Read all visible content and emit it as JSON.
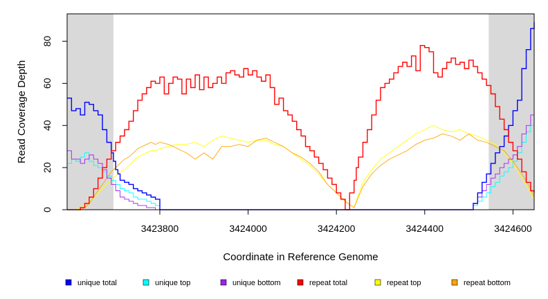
{
  "chart_data": {
    "type": "line",
    "title": "",
    "xlabel": "Coordinate in Reference Genome",
    "ylabel": "Read Coverage Depth",
    "xlim": [
      3423590,
      3424648
    ],
    "ylim": [
      0,
      93
    ],
    "x_ticks": [
      3423800,
      3424000,
      3424200,
      3424400,
      3424600
    ],
    "x_tick_labels": [
      "3423800",
      "3424000",
      "3424200",
      "3424400",
      "3424600"
    ],
    "y_ticks": [
      0,
      20,
      40,
      60,
      80
    ],
    "y_tick_labels": [
      "0",
      "20",
      "40",
      "60",
      "80"
    ],
    "shaded_regions": [
      {
        "x0": 3423590,
        "x1": 3423695,
        "color": "#d9d9d9"
      },
      {
        "x0": 3424545,
        "x1": 3424648,
        "color": "#d9d9d9"
      }
    ],
    "grid": false,
    "legend_position": "bottom",
    "series": [
      {
        "name": "unique total",
        "color": "#0000ff",
        "step": true,
        "x": [
          3423590,
          3423600,
          3423610,
          3423620,
          3423630,
          3423640,
          3423650,
          3423660,
          3423670,
          3423680,
          3423690,
          3423695,
          3423700,
          3423705,
          3423710,
          3423720,
          3423730,
          3423740,
          3423750,
          3423760,
          3423770,
          3423780,
          3423790,
          3423800,
          3423810,
          3424500,
          3424510,
          3424520,
          3424530,
          3424540,
          3424550,
          3424560,
          3424570,
          3424580,
          3424590,
          3424600,
          3424610,
          3424620,
          3424630,
          3424640,
          3424648
        ],
        "y": [
          53,
          47,
          48,
          45,
          51,
          50,
          47,
          45,
          38,
          32,
          27,
          23,
          19,
          17,
          14,
          13,
          12,
          10,
          9,
          8,
          7,
          6,
          5,
          0,
          0,
          0,
          3,
          8,
          13,
          17,
          22,
          27,
          30,
          35,
          40,
          47,
          52,
          67,
          76,
          86,
          89
        ]
      },
      {
        "name": "unique top",
        "color": "#00ffff",
        "step": true,
        "x": [
          3423590,
          3423600,
          3423610,
          3423620,
          3423630,
          3423640,
          3423650,
          3423660,
          3423670,
          3423680,
          3423690,
          3423700,
          3423710,
          3423720,
          3423730,
          3423740,
          3423750,
          3423760,
          3423770,
          3423780,
          3423790,
          3423800,
          3423810,
          3424500,
          3424510,
          3424520,
          3424530,
          3424540,
          3424550,
          3424560,
          3424570,
          3424580,
          3424590,
          3424600,
          3424610,
          3424620,
          3424630,
          3424640,
          3424648
        ],
        "y": [
          22,
          24,
          23,
          25,
          27,
          23,
          21,
          20,
          18,
          16,
          14,
          12,
          10,
          9,
          8,
          6,
          5,
          5,
          4,
          3,
          2,
          0,
          0,
          0,
          2,
          4,
          6,
          8,
          11,
          13,
          16,
          18,
          20,
          23,
          27,
          32,
          37,
          40,
          44
        ]
      },
      {
        "name": "unique bottom",
        "color": "#a020f0",
        "step": true,
        "x": [
          3423590,
          3423600,
          3423610,
          3423620,
          3423630,
          3423640,
          3423650,
          3423660,
          3423670,
          3423680,
          3423690,
          3423700,
          3423710,
          3423720,
          3423730,
          3423740,
          3423750,
          3423760,
          3423770,
          3423780,
          3423790,
          3423800,
          3424500,
          3424510,
          3424520,
          3424530,
          3424540,
          3424550,
          3424560,
          3424570,
          3424580,
          3424590,
          3424600,
          3424610,
          3424620,
          3424630,
          3424640,
          3424648
        ],
        "y": [
          28,
          24,
          24,
          22,
          24,
          26,
          24,
          22,
          19,
          15,
          12,
          9,
          6,
          5,
          4,
          3,
          2,
          2,
          1,
          1,
          0,
          0,
          0,
          3,
          6,
          9,
          12,
          15,
          17,
          20,
          22,
          24,
          26,
          30,
          36,
          40,
          45,
          47
        ]
      },
      {
        "name": "repeat total",
        "color": "#ff0000",
        "step": true,
        "x": [
          3423590,
          3423610,
          3423620,
          3423630,
          3423640,
          3423650,
          3423660,
          3423670,
          3423680,
          3423690,
          3423700,
          3423710,
          3423720,
          3423730,
          3423740,
          3423750,
          3423760,
          3423770,
          3423780,
          3423790,
          3423800,
          3423810,
          3423820,
          3423830,
          3423840,
          3423850,
          3423860,
          3423870,
          3423880,
          3423890,
          3423900,
          3423910,
          3423920,
          3423930,
          3423940,
          3423950,
          3423960,
          3423970,
          3423980,
          3423990,
          3424000,
          3424010,
          3424020,
          3424030,
          3424040,
          3424050,
          3424060,
          3424070,
          3424080,
          3424090,
          3424100,
          3424110,
          3424120,
          3424130,
          3424140,
          3424150,
          3424160,
          3424170,
          3424180,
          3424190,
          3424200,
          3424210,
          3424220,
          3424230,
          3424240,
          3424245,
          3424250,
          3424260,
          3424270,
          3424280,
          3424290,
          3424300,
          3424310,
          3424320,
          3424330,
          3424340,
          3424350,
          3424360,
          3424370,
          3424380,
          3424390,
          3424400,
          3424410,
          3424420,
          3424430,
          3424440,
          3424450,
          3424460,
          3424470,
          3424480,
          3424490,
          3424500,
          3424510,
          3424520,
          3424530,
          3424540,
          3424550,
          3424560,
          3424570,
          3424580,
          3424590,
          3424600,
          3424610,
          3424620,
          3424630,
          3424640,
          3424648
        ],
        "y": [
          0,
          0,
          1,
          3,
          6,
          10,
          15,
          20,
          24,
          28,
          32,
          35,
          38,
          42,
          47,
          52,
          55,
          58,
          61,
          60,
          63,
          55,
          60,
          63,
          62,
          55,
          62,
          58,
          64,
          57,
          63,
          58,
          60,
          63,
          60,
          65,
          66,
          64,
          63,
          67,
          64,
          66,
          63,
          61,
          64,
          58,
          50,
          53,
          47,
          45,
          42,
          38,
          35,
          30,
          28,
          25,
          22,
          19,
          15,
          12,
          8,
          5,
          0,
          8,
          14,
          20,
          25,
          32,
          38,
          45,
          52,
          58,
          60,
          62,
          65,
          68,
          70,
          68,
          73,
          66,
          78,
          77,
          75,
          65,
          63,
          67,
          70,
          72,
          69,
          70,
          67,
          71,
          68,
          65,
          62,
          59,
          55,
          49,
          43,
          38,
          32,
          28,
          24,
          18,
          13,
          9,
          8
        ]
      },
      {
        "name": "repeat top",
        "color": "#ffff00",
        "step": false,
        "x": [
          3423590,
          3423610,
          3423620,
          3423630,
          3423640,
          3423650,
          3423660,
          3423670,
          3423680,
          3423690,
          3423700,
          3423710,
          3423720,
          3423730,
          3423740,
          3423750,
          3423760,
          3423770,
          3423780,
          3423790,
          3423800,
          3423820,
          3423840,
          3423860,
          3423880,
          3423900,
          3423920,
          3423940,
          3423960,
          3423980,
          3424000,
          3424020,
          3424040,
          3424060,
          3424080,
          3424100,
          3424120,
          3424140,
          3424160,
          3424180,
          3424200,
          3424220,
          3424240,
          3424250,
          3424260,
          3424280,
          3424300,
          3424320,
          3424340,
          3424360,
          3424380,
          3424400,
          3424420,
          3424440,
          3424460,
          3424480,
          3424500,
          3424520,
          3424540,
          3424560,
          3424580,
          3424600,
          3424620,
          3424640,
          3424648
        ],
        "y": [
          0,
          0,
          1,
          2,
          4,
          6,
          8,
          10,
          12,
          14,
          16,
          18,
          19,
          21,
          23,
          25,
          26,
          27,
          28,
          28,
          29,
          30,
          31,
          31,
          32,
          30,
          33,
          35,
          34,
          33,
          32,
          33,
          33,
          31,
          30,
          27,
          24,
          21,
          17,
          12,
          8,
          4,
          1,
          7,
          13,
          19,
          24,
          27,
          30,
          33,
          36,
          38,
          40,
          38,
          37,
          38,
          36,
          35,
          33,
          31,
          27,
          22,
          15,
          8,
          5
        ]
      },
      {
        "name": "repeat bottom",
        "color": "#ffa500",
        "step": false,
        "x": [
          3423590,
          3423610,
          3423620,
          3423630,
          3423640,
          3423650,
          3423660,
          3423670,
          3423680,
          3423690,
          3423700,
          3423710,
          3423720,
          3423730,
          3423740,
          3423750,
          3423760,
          3423770,
          3423780,
          3423790,
          3423800,
          3423820,
          3423840,
          3423860,
          3423880,
          3423900,
          3423920,
          3423940,
          3423960,
          3423980,
          3424000,
          3424020,
          3424040,
          3424060,
          3424080,
          3424100,
          3424120,
          3424140,
          3424160,
          3424180,
          3424200,
          3424220,
          3424240,
          3424250,
          3424260,
          3424280,
          3424300,
          3424320,
          3424340,
          3424360,
          3424380,
          3424400,
          3424420,
          3424440,
          3424460,
          3424480,
          3424500,
          3424520,
          3424540,
          3424560,
          3424580,
          3424600,
          3424620,
          3424640,
          3424648
        ],
        "y": [
          0,
          0,
          0,
          1,
          3,
          6,
          9,
          12,
          15,
          18,
          20,
          22,
          24,
          25,
          27,
          29,
          30,
          31,
          32,
          31,
          32,
          31,
          29,
          27,
          24,
          27,
          24,
          30,
          30,
          31,
          30,
          33,
          34,
          32,
          30,
          27,
          25,
          22,
          18,
          12,
          8,
          4,
          1,
          6,
          11,
          17,
          21,
          24,
          26,
          28,
          31,
          33,
          34,
          36,
          35,
          33,
          36,
          33,
          32,
          30,
          28,
          23,
          17,
          10,
          6
        ]
      }
    ]
  }
}
